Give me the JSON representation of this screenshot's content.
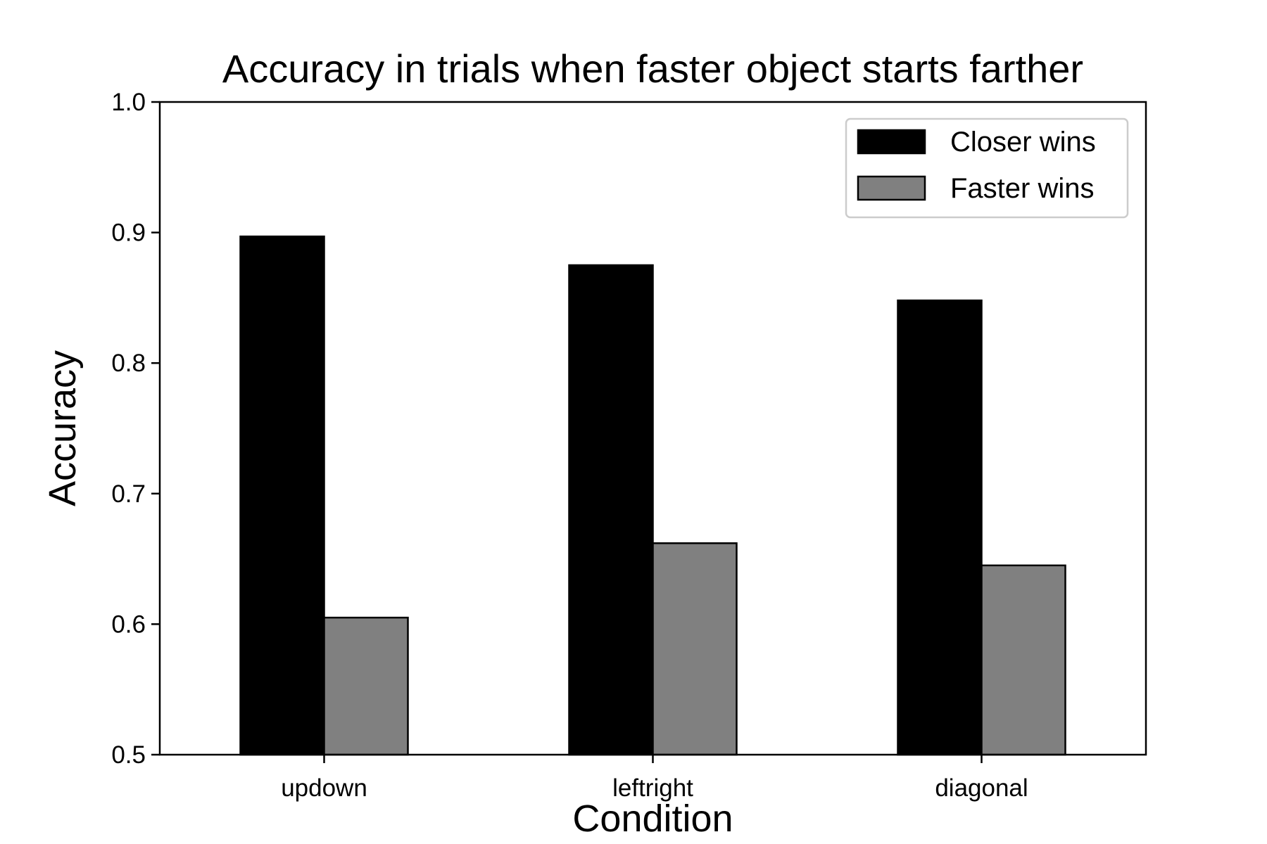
{
  "chart_data": {
    "type": "bar",
    "title": "Accuracy in trials when faster object starts farther",
    "xlabel": "Condition",
    "ylabel": "Accuracy",
    "categories": [
      "updown",
      "leftright",
      "diagonal"
    ],
    "series": [
      {
        "name": "Closer wins",
        "values": [
          0.897,
          0.875,
          0.848
        ],
        "color": "#000000"
      },
      {
        "name": "Faster wins",
        "values": [
          0.605,
          0.662,
          0.645
        ],
        "color": "#808080"
      }
    ],
    "ylim": [
      0.5,
      1.0
    ],
    "yticks": [
      "0.5",
      "0.6",
      "0.7",
      "0.8",
      "0.9",
      "1.0"
    ],
    "grid": false,
    "legend_position": "top-right"
  }
}
